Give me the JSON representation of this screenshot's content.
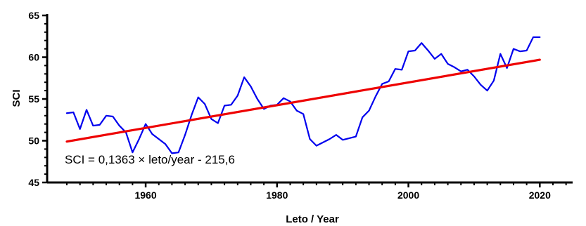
{
  "chart_data": {
    "type": "line",
    "title": "",
    "xlabel": "Leto / Year",
    "ylabel": "SCI",
    "xlim": [
      1945,
      2025
    ],
    "ylim": [
      45,
      65
    ],
    "x_ticks": [
      1960,
      1980,
      2000,
      2020
    ],
    "y_ticks": [
      45,
      50,
      55,
      60,
      65
    ],
    "grid": false,
    "annotation": "SCI = 0,1363 × leto/year - 215,6",
    "series": [
      {
        "color": "#0000ee",
        "x": [
          1948,
          1949,
          1950,
          1951,
          1952,
          1953,
          1954,
          1955,
          1956,
          1957,
          1958,
          1959,
          1960,
          1961,
          1962,
          1963,
          1964,
          1965,
          1966,
          1967,
          1968,
          1969,
          1970,
          1971,
          1972,
          1973,
          1974,
          1975,
          1976,
          1977,
          1978,
          1979,
          1980,
          1981,
          1982,
          1983,
          1984,
          1985,
          1986,
          1987,
          1988,
          1989,
          1990,
          1991,
          1992,
          1993,
          1994,
          1995,
          1996,
          1997,
          1998,
          1999,
          2000,
          2001,
          2002,
          2003,
          2004,
          2005,
          2006,
          2007,
          2008,
          2009,
          2010,
          2011,
          2012,
          2013,
          2014,
          2015,
          2016,
          2017,
          2018,
          2019,
          2020
        ],
        "y": [
          53.3,
          53.4,
          51.4,
          53.7,
          51.8,
          51.9,
          53.0,
          52.9,
          51.8,
          51.0,
          48.6,
          50.2,
          52.0,
          50.8,
          50.2,
          49.6,
          48.5,
          48.6,
          50.7,
          53.1,
          55.2,
          54.4,
          52.6,
          52.1,
          54.2,
          54.3,
          55.4,
          57.6,
          56.5,
          55.0,
          53.8,
          54.2,
          54.3,
          55.1,
          54.7,
          53.6,
          53.2,
          50.2,
          49.4,
          49.8,
          50.2,
          50.7,
          50.1,
          50.3,
          50.5,
          52.8,
          53.6,
          55.3,
          56.8,
          57.1,
          58.6,
          58.5,
          60.7,
          60.8,
          61.7,
          60.8,
          59.8,
          60.4,
          59.2,
          58.8,
          58.3,
          58.5,
          57.7,
          56.7,
          56.0,
          57.2,
          60.4,
          58.7,
          61.0,
          60.7,
          60.8,
          62.4,
          62.4
        ]
      },
      {
        "color": "#ee0000",
        "x": [
          1948,
          2020
        ],
        "y": [
          49.9,
          59.7
        ]
      }
    ]
  }
}
